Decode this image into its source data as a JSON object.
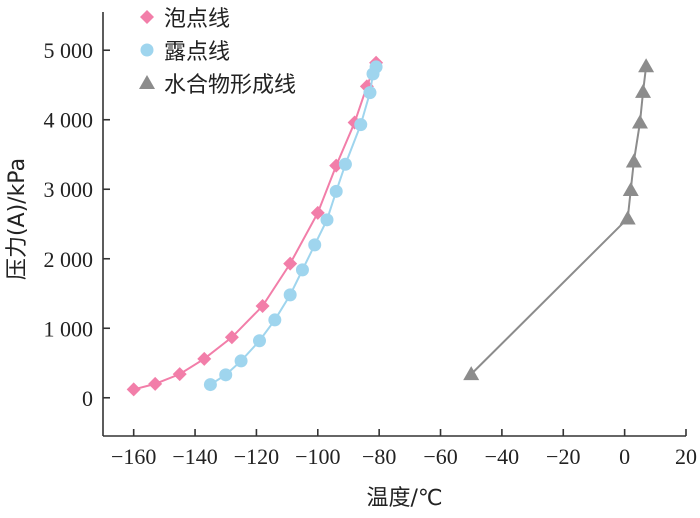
{
  "chart_data": {
    "type": "scatter",
    "xlabel": "温度/℃",
    "ylabel": "压力(A)/kPa",
    "xlim": [
      -170,
      20
    ],
    "ylim": [
      -550,
      5550
    ],
    "x_ticks": [
      -160,
      -140,
      -120,
      -100,
      -80,
      -60,
      -40,
      -20,
      0,
      20
    ],
    "x_tick_labels": [
      "−160",
      "−140",
      "−120",
      "−100",
      "−80",
      "−60",
      "−40",
      "−20",
      "0",
      "20"
    ],
    "y_ticks": [
      0,
      1000,
      2000,
      3000,
      4000,
      5000
    ],
    "y_tick_labels": [
      "0",
      "1 000",
      "2 000",
      "3 000",
      "4 000",
      "5 000"
    ],
    "grid": false,
    "legend_position": "top-left",
    "series": [
      {
        "name": "泡点线",
        "color": "#f27ea9",
        "marker": "diamond",
        "x": [
          -160,
          -153,
          -145,
          -137,
          -128,
          -118,
          -109,
          -100,
          -94,
          -88,
          -84,
          -81
        ],
        "y": [
          120,
          200,
          340,
          560,
          870,
          1320,
          1930,
          2660,
          3340,
          3960,
          4480,
          4820
        ]
      },
      {
        "name": "露点线",
        "color": "#9fd5ee",
        "marker": "circle",
        "x": [
          -135,
          -130,
          -125,
          -119,
          -114,
          -109,
          -105,
          -101,
          -97,
          -94,
          -91,
          -86,
          -83,
          -82,
          -81
        ],
        "y": [
          190,
          330,
          530,
          820,
          1120,
          1480,
          1840,
          2200,
          2560,
          2970,
          3360,
          3930,
          4390,
          4660,
          4760
        ]
      },
      {
        "name": "水合物形成线",
        "color": "#8c8c8c",
        "marker": "triangle",
        "x": [
          -50,
          1,
          2,
          3,
          5,
          6,
          7
        ],
        "y": [
          340,
          2580,
          2990,
          3400,
          3960,
          4400,
          4770
        ]
      }
    ]
  }
}
